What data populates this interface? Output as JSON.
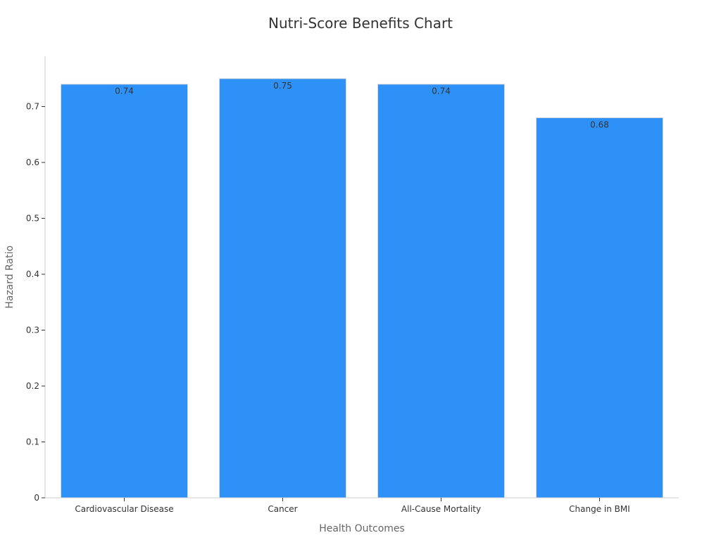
{
  "chart_data": {
    "type": "bar",
    "title": "Nutri-Score Benefits Chart",
    "xlabel": "Health Outcomes",
    "ylabel": "Hazard Ratio",
    "categories": [
      "Cardiovascular Disease",
      "Cancer",
      "All-Cause Mortality",
      "Change in BMI"
    ],
    "values": [
      0.74,
      0.75,
      0.74,
      0.68
    ],
    "data_labels": [
      "0.74",
      "0.75",
      "0.74",
      "0.68"
    ],
    "ylim": [
      0,
      0.79
    ],
    "yticks": [
      0,
      0.1,
      0.2,
      0.3,
      0.4,
      0.5,
      0.6,
      0.7
    ],
    "ytick_labels": [
      "0",
      "0.1",
      "0.2",
      "0.3",
      "0.4",
      "0.5",
      "0.6",
      "0.7"
    ],
    "grid": false,
    "colors": {
      "bar": "#2e91f8",
      "bar_stroke": "#d9d9d9",
      "axis": "#cccccc"
    }
  }
}
